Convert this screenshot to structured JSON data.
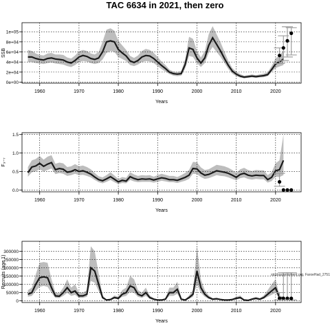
{
  "title": "TAC 6634 in 2021, then zero",
  "watermark": "stockassessment.org, FaroeHad_2751",
  "colors": {
    "band": "#bdbdbd",
    "line": "#1a1a1a",
    "grid": "#000000",
    "forecast": "#9e9e9e"
  },
  "chart_data": [
    {
      "type": "line",
      "name": "ssb",
      "xlabel": "Years",
      "ylabel": "SSB",
      "xlim": [
        1955.5,
        2026.5
      ],
      "ylim": [
        -2000,
        118000
      ],
      "xticks": [
        1960,
        1970,
        1980,
        1990,
        2000,
        2010,
        2020
      ],
      "xtick_labels": [
        "1960",
        "1970",
        "1980",
        "1990",
        "2000",
        "2010",
        "2020"
      ],
      "yticks": [
        0,
        20000,
        40000,
        60000,
        80000,
        100000
      ],
      "ytick_labels": [
        "0e+00",
        "2e+04",
        "4e+04",
        "6e+04",
        "8e+04",
        "1e+05"
      ],
      "x_start": 1957,
      "estimate": [
        50000,
        50000,
        47000,
        45000,
        44000,
        47000,
        48000,
        46000,
        45000,
        44000,
        40000,
        38000,
        43000,
        50000,
        53000,
        51000,
        47000,
        45000,
        48000,
        60000,
        80000,
        82000,
        80000,
        65000,
        58000,
        52000,
        42000,
        39000,
        43000,
        50000,
        53000,
        52000,
        47000,
        40000,
        33000,
        27000,
        20000,
        17000,
        16000,
        17000,
        35000,
        68000,
        65000,
        48000,
        38000,
        48000,
        73000,
        88000,
        75000,
        62000,
        47000,
        33000,
        22000,
        16000,
        12000,
        10000,
        11000,
        12000,
        11000,
        12000,
        13000,
        15000,
        25000,
        36000,
        40000,
        46000
      ],
      "lower": [
        40000,
        40000,
        38000,
        37000,
        36000,
        38000,
        39000,
        37000,
        36000,
        35000,
        32000,
        30000,
        34000,
        40000,
        42000,
        41000,
        38000,
        36000,
        38000,
        45000,
        58000,
        62000,
        60000,
        50000,
        46000,
        42000,
        34000,
        32000,
        35000,
        40000,
        42000,
        41000,
        38000,
        32000,
        26000,
        21000,
        16000,
        13000,
        12000,
        13000,
        27000,
        52000,
        50000,
        38000,
        30000,
        38000,
        58000,
        70000,
        60000,
        50000,
        38000,
        26000,
        17000,
        12000,
        9000,
        8000,
        8500,
        9500,
        8500,
        9500,
        10000,
        12000,
        20000,
        28000,
        31000,
        34000
      ],
      "upper": [
        64000,
        62000,
        57000,
        54000,
        53000,
        57000,
        58000,
        55000,
        55000,
        54000,
        49000,
        47000,
        53000,
        61000,
        64000,
        62000,
        57000,
        55000,
        60000,
        80000,
        104000,
        107000,
        102000,
        82000,
        73000,
        64000,
        52000,
        48000,
        53000,
        62000,
        66000,
        64000,
        58000,
        50000,
        41000,
        34000,
        25000,
        21000,
        20000,
        22000,
        45000,
        90000,
        86000,
        62000,
        49000,
        62000,
        95000,
        111000,
        95000,
        79000,
        60000,
        42000,
        28000,
        21000,
        16000,
        13000,
        14000,
        15500,
        14000,
        15500,
        17000,
        20000,
        32000,
        47000,
        53000,
        62000
      ],
      "forecast": [
        {
          "x": 2021,
          "y": 53000,
          "lo": 37000,
          "hi": 68000
        },
        {
          "x": 2022,
          "y": 68000,
          "lo": 43000,
          "hi": 92000
        },
        {
          "x": 2023,
          "y": 82000,
          "lo": 50000,
          "hi": 110000
        },
        {
          "x": 2024,
          "y": 97000,
          "lo": 54000,
          "hi": 108000
        }
      ]
    },
    {
      "type": "line",
      "name": "fbar",
      "xlabel": "Years",
      "ylabel": "F3-7",
      "xlim": [
        1955.5,
        2026.5
      ],
      "ylim": [
        -0.05,
        1.55
      ],
      "xticks": [
        1960,
        1970,
        1980,
        1990,
        2000,
        2010,
        2020
      ],
      "xtick_labels": [
        "1960",
        "1970",
        "1980",
        "1990",
        "2000",
        "2010",
        "2020"
      ],
      "yticks": [
        0,
        0.5,
        1,
        1.5
      ],
      "ytick_labels": [
        "0.0",
        "0.5",
        "1.0",
        "1.5"
      ],
      "x_start": 1957,
      "estimate": [
        0.47,
        0.62,
        0.65,
        0.72,
        0.64,
        0.7,
        0.74,
        0.55,
        0.58,
        0.56,
        0.48,
        0.5,
        0.55,
        0.5,
        0.52,
        0.48,
        0.43,
        0.35,
        0.28,
        0.25,
        0.3,
        0.36,
        0.29,
        0.22,
        0.26,
        0.24,
        0.36,
        0.31,
        0.28,
        0.3,
        0.29,
        0.3,
        0.27,
        0.3,
        0.33,
        0.31,
        0.28,
        0.28,
        0.26,
        0.3,
        0.34,
        0.4,
        0.58,
        0.57,
        0.46,
        0.4,
        0.42,
        0.47,
        0.52,
        0.5,
        0.48,
        0.45,
        0.4,
        0.34,
        0.42,
        0.45,
        0.4,
        0.38,
        0.4,
        0.39,
        0.39,
        0.28,
        0.34,
        0.52,
        0.55,
        0.8
      ],
      "lower": [
        0.36,
        0.48,
        0.5,
        0.56,
        0.5,
        0.54,
        0.58,
        0.43,
        0.46,
        0.44,
        0.38,
        0.4,
        0.44,
        0.4,
        0.41,
        0.38,
        0.34,
        0.27,
        0.21,
        0.18,
        0.22,
        0.27,
        0.21,
        0.16,
        0.19,
        0.18,
        0.27,
        0.23,
        0.21,
        0.22,
        0.22,
        0.22,
        0.2,
        0.22,
        0.25,
        0.23,
        0.21,
        0.21,
        0.19,
        0.22,
        0.25,
        0.3,
        0.44,
        0.43,
        0.35,
        0.3,
        0.32,
        0.36,
        0.4,
        0.38,
        0.37,
        0.34,
        0.3,
        0.26,
        0.32,
        0.34,
        0.3,
        0.28,
        0.3,
        0.29,
        0.29,
        0.2,
        0.24,
        0.36,
        0.35,
        0.4
      ],
      "upper": [
        0.62,
        0.8,
        0.84,
        0.92,
        0.82,
        0.9,
        0.94,
        0.71,
        0.74,
        0.72,
        0.62,
        0.64,
        0.7,
        0.64,
        0.66,
        0.62,
        0.56,
        0.46,
        0.37,
        0.34,
        0.4,
        0.48,
        0.39,
        0.3,
        0.35,
        0.33,
        0.48,
        0.42,
        0.38,
        0.4,
        0.39,
        0.4,
        0.36,
        0.4,
        0.44,
        0.41,
        0.38,
        0.38,
        0.35,
        0.4,
        0.46,
        0.54,
        0.76,
        0.75,
        0.61,
        0.54,
        0.56,
        0.62,
        0.68,
        0.66,
        0.64,
        0.6,
        0.54,
        0.46,
        0.56,
        0.6,
        0.54,
        0.51,
        0.54,
        0.53,
        0.53,
        0.4,
        0.48,
        0.72,
        0.8,
        1.5
      ],
      "forecast": [
        {
          "x": 2021,
          "y": 0.22,
          "lo": 0.1,
          "hi": 0.45
        },
        {
          "x": 2022,
          "y": 0.0,
          "lo": 0.0,
          "hi": 0.0
        },
        {
          "x": 2023,
          "y": 0.0,
          "lo": 0.0,
          "hi": 0.0
        },
        {
          "x": 2024,
          "y": 0.0,
          "lo": 0.0,
          "hi": 0.0
        }
      ]
    },
    {
      "type": "line",
      "name": "recruits",
      "xlabel": "Years",
      "ylabel": "Recruits (age 1)",
      "xlim": [
        1955.5,
        2026.5
      ],
      "ylim": [
        -10000,
        360000
      ],
      "xticks": [
        1960,
        1970,
        1980,
        1990,
        2000,
        2010,
        2020
      ],
      "xtick_labels": [
        "1960",
        "1970",
        "1980",
        "1990",
        "2000",
        "2010",
        "2020"
      ],
      "yticks": [
        0,
        50000,
        100000,
        150000,
        200000,
        250000,
        300000
      ],
      "ytick_labels": [
        "0",
        "50000",
        "100000",
        "150000",
        "200000",
        "250000",
        "300000"
      ],
      "x_start": 1957,
      "estimate": [
        40000,
        50000,
        100000,
        140000,
        145000,
        140000,
        80000,
        30000,
        28000,
        50000,
        80000,
        50000,
        60000,
        30000,
        30000,
        40000,
        200000,
        180000,
        100000,
        20000,
        5000,
        8000,
        20000,
        15000,
        40000,
        50000,
        90000,
        80000,
        40000,
        30000,
        50000,
        20000,
        10000,
        5000,
        5000,
        10000,
        50000,
        50000,
        70000,
        10000,
        5000,
        20000,
        40000,
        180000,
        80000,
        40000,
        20000,
        10000,
        12000,
        8000,
        5000,
        5000,
        8000,
        15000,
        20000,
        5000,
        3000,
        10000,
        15000,
        10000,
        20000,
        40000,
        60000,
        80000,
        20000,
        15000
      ],
      "lower": [
        25000,
        30000,
        60000,
        85000,
        90000,
        85000,
        48000,
        18000,
        17000,
        30000,
        48000,
        30000,
        36000,
        18000,
        18000,
        24000,
        120000,
        110000,
        60000,
        12000,
        3000,
        5000,
        12000,
        9000,
        24000,
        30000,
        54000,
        48000,
        24000,
        18000,
        30000,
        12000,
        6000,
        3000,
        3000,
        6000,
        30000,
        30000,
        42000,
        6000,
        3000,
        12000,
        24000,
        100000,
        48000,
        24000,
        12000,
        6000,
        7000,
        5000,
        3000,
        3000,
        5000,
        9000,
        12000,
        3000,
        2000,
        6000,
        9000,
        6000,
        12000,
        24000,
        36000,
        48000,
        12000,
        8000
      ],
      "upper": [
        65000,
        80000,
        160000,
        230000,
        235000,
        230000,
        130000,
        50000,
        46000,
        80000,
        130000,
        80000,
        100000,
        50000,
        50000,
        65000,
        330000,
        300000,
        165000,
        33000,
        8000,
        13000,
        33000,
        25000,
        65000,
        80000,
        150000,
        130000,
        65000,
        50000,
        80000,
        33000,
        16000,
        8000,
        8000,
        16000,
        80000,
        80000,
        115000,
        16000,
        8000,
        33000,
        65000,
        330000,
        130000,
        65000,
        33000,
        16000,
        20000,
        13000,
        8000,
        8000,
        13000,
        25000,
        33000,
        8000,
        5000,
        16000,
        25000,
        16000,
        33000,
        65000,
        100000,
        130000,
        33000,
        25000
      ],
      "forecast": [
        {
          "x": 2021,
          "y": 15000,
          "lo": 5000,
          "hi": 50000
        },
        {
          "x": 2022,
          "y": 15000,
          "lo": 5000,
          "hi": 170000
        },
        {
          "x": 2023,
          "y": 15000,
          "lo": 5000,
          "hi": 170000
        },
        {
          "x": 2024,
          "y": 15000,
          "lo": 5000,
          "hi": 170000
        }
      ]
    }
  ]
}
